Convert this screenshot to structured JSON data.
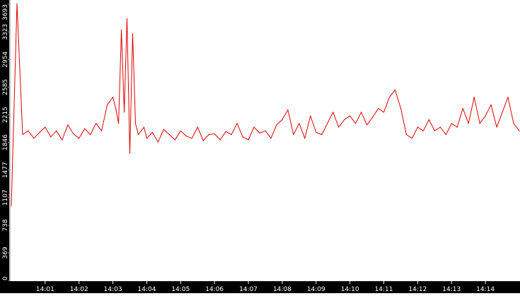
{
  "chart_data": {
    "type": "line",
    "title": "",
    "xlabel": "",
    "ylabel": "",
    "grid": false,
    "legend": "none",
    "colors": {
      "line": "#e00000",
      "background": "#ffffff",
      "axis_band": "#000000",
      "tick_text": "#ffffff"
    },
    "ylim": [
      0,
      3693
    ],
    "xlim": [
      "14:00:00",
      "14:15:00"
    ],
    "y_ticks": [
      "0",
      "369",
      "738",
      "1107",
      "1477",
      "1846",
      "2215",
      "2585",
      "2954",
      "3323",
      "3693"
    ],
    "x_ticks": [
      "14:01",
      "14:02",
      "14:03",
      "14:04",
      "14:05",
      "14:06",
      "14:07",
      "14:08",
      "14:09",
      "14:10",
      "14:11",
      "14:12",
      "14:13",
      "14:14"
    ],
    "series": [
      {
        "x": [
          "14:00:00",
          "14:00:10",
          "14:00:20",
          "14:00:30",
          "14:00:40",
          "14:00:50",
          "14:01:00",
          "14:01:10",
          "14:01:20",
          "14:01:30",
          "14:01:40",
          "14:01:50",
          "14:02:00",
          "14:02:10",
          "14:02:20",
          "14:02:30",
          "14:02:40",
          "14:02:50",
          "14:03:00",
          "14:03:05",
          "14:03:10",
          "14:03:15",
          "14:03:20",
          "14:03:25",
          "14:03:30",
          "14:03:35",
          "14:03:40",
          "14:03:45",
          "14:03:50",
          "14:03:55",
          "14:04:00",
          "14:04:10",
          "14:04:20",
          "14:04:30",
          "14:04:40",
          "14:04:50",
          "14:05:00",
          "14:05:10",
          "14:05:20",
          "14:05:30",
          "14:05:40",
          "14:05:50",
          "14:06:00",
          "14:06:10",
          "14:06:20",
          "14:06:30",
          "14:06:40",
          "14:06:50",
          "14:07:00",
          "14:07:10",
          "14:07:20",
          "14:07:30",
          "14:07:40",
          "14:07:50",
          "14:08:00",
          "14:08:10",
          "14:08:20",
          "14:08:30",
          "14:08:40",
          "14:08:50",
          "14:09:00",
          "14:09:10",
          "14:09:20",
          "14:09:30",
          "14:09:40",
          "14:09:50",
          "14:10:00",
          "14:10:10",
          "14:10:20",
          "14:10:30",
          "14:10:40",
          "14:10:50",
          "14:11:00",
          "14:11:10",
          "14:11:20",
          "14:11:30",
          "14:11:40",
          "14:11:50",
          "14:12:00",
          "14:12:10",
          "14:12:20",
          "14:12:30",
          "14:12:40",
          "14:12:50",
          "14:13:00",
          "14:13:10",
          "14:13:20",
          "14:13:30",
          "14:13:40",
          "14:13:50",
          "14:14:00",
          "14:14:10",
          "14:14:20",
          "14:14:30",
          "14:14:40",
          "14:14:50",
          "14:15:00"
        ],
        "y": [
          1000,
          3700,
          1950,
          2000,
          1900,
          1980,
          2050,
          1920,
          2000,
          1880,
          2080,
          1960,
          1900,
          2030,
          1950,
          2100,
          2000,
          2350,
          2450,
          2300,
          2100,
          3350,
          2250,
          3500,
          1700,
          3300,
          2100,
          1950,
          2000,
          2050,
          1900,
          1980,
          1850,
          2020,
          1950,
          1880,
          2000,
          1930,
          1900,
          2050,
          1870,
          1950,
          1960,
          1880,
          1990,
          1950,
          2100,
          1920,
          1880,
          2050,
          1970,
          2000,
          1900,
          2080,
          2150,
          2280,
          1950,
          2100,
          1900,
          2200,
          1980,
          1950,
          2100,
          2250,
          2050,
          2150,
          2200,
          2100,
          2250,
          2080,
          2180,
          2300,
          2250,
          2450,
          2550,
          2300,
          1950,
          1900,
          2050,
          2000,
          2150,
          2000,
          2050,
          1950,
          2100,
          2050,
          2300,
          2100,
          2450,
          2100,
          2200,
          2350,
          2050,
          2250,
          2450,
          2100,
          2000
        ]
      }
    ]
  }
}
